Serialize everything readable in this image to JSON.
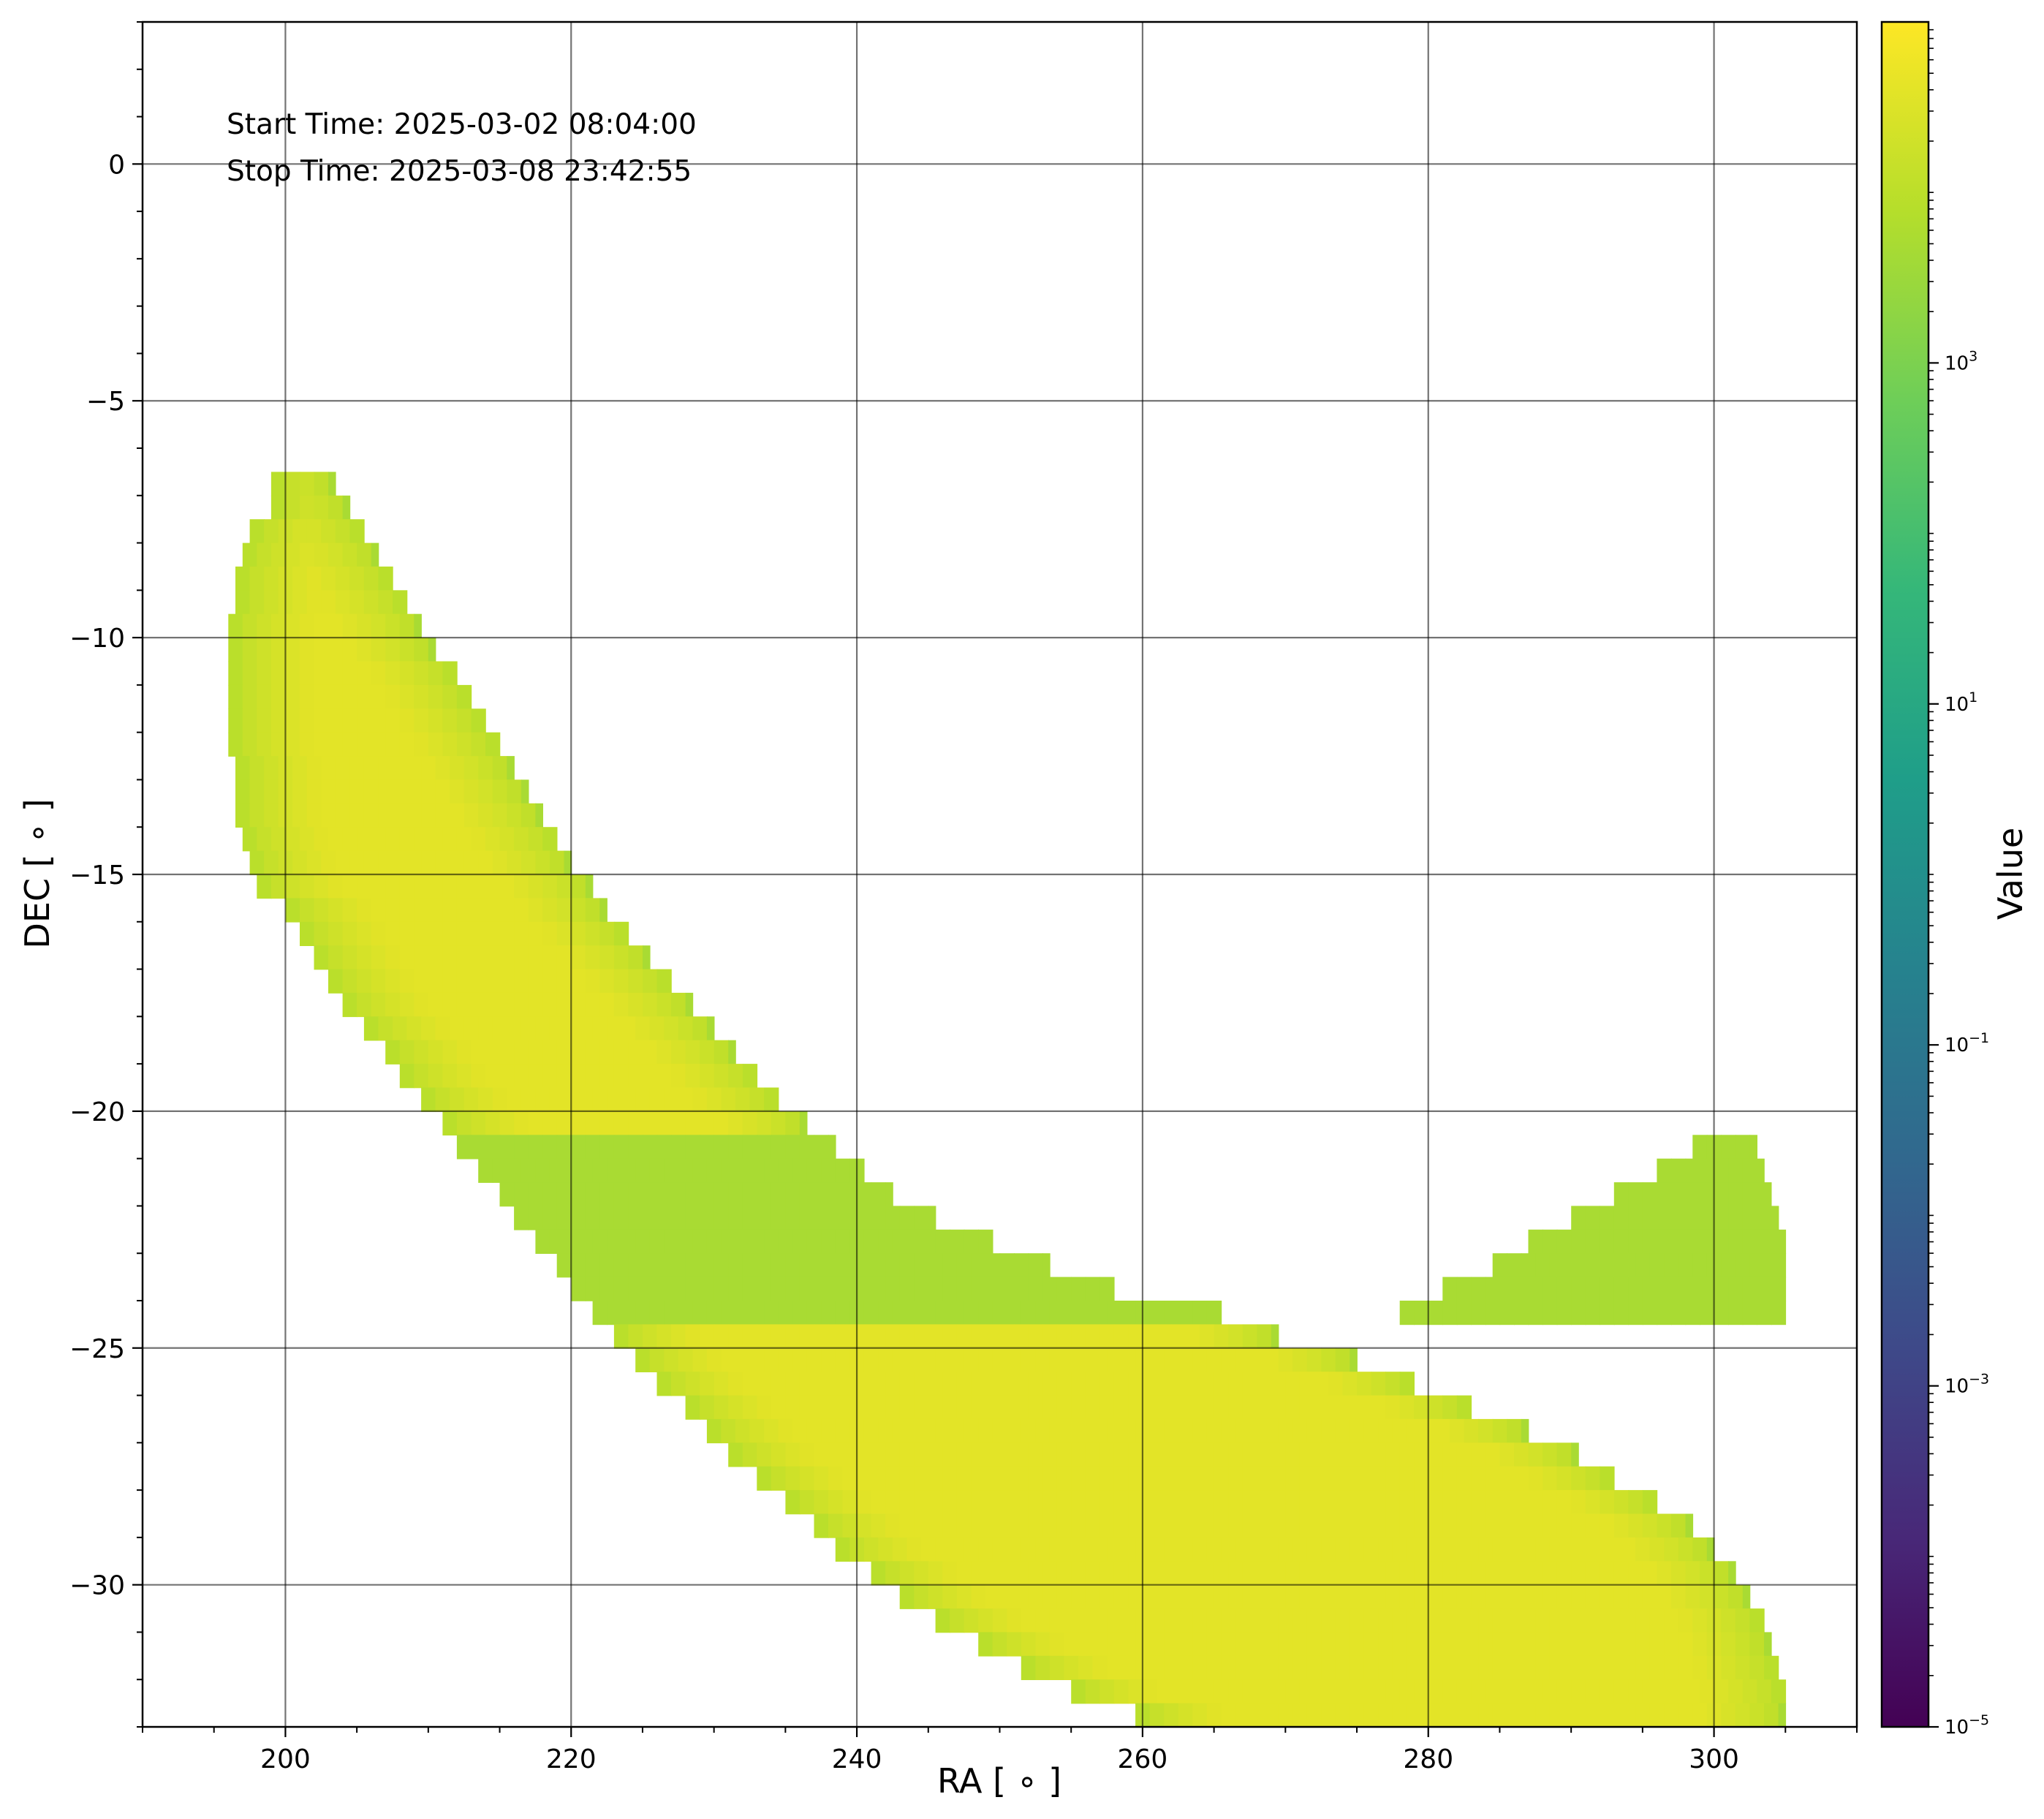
{
  "chart_data": {
    "type": "heatmap",
    "title": "",
    "xlabel": "RA [ ∘ ]",
    "ylabel": "DEC [ ∘ ]",
    "xlim": [
      190,
      310
    ],
    "ylim": [
      -33,
      3
    ],
    "x_ticks": [
      200,
      220,
      240,
      260,
      280,
      300
    ],
    "x_tick_labels": [
      "200",
      "220",
      "240",
      "260",
      "280",
      "300"
    ],
    "y_ticks": [
      0,
      -5,
      -10,
      -15,
      -20,
      -25,
      -30
    ],
    "y_tick_labels": [
      "0",
      "−5",
      "−10",
      "−15",
      "−20",
      "−25",
      "−30"
    ],
    "grid": true,
    "colormap": "viridis",
    "colorbar": {
      "label": "Value",
      "scale": "log",
      "range": [
        1e-05,
        100000
      ],
      "ticks": [
        1e-05,
        0.001,
        0.1,
        10,
        1000
      ],
      "tick_labels": [
        {
          "base": "10",
          "exp": "−5"
        },
        {
          "base": "10",
          "exp": "−3"
        },
        {
          "base": "10",
          "exp": "−1"
        },
        {
          "base": "10",
          "exp": "1"
        },
        {
          "base": "10",
          "exp": "3"
        }
      ]
    },
    "annotations": [
      "Start Time: 2025-03-02 08:04:00",
      "Stop Time: 2025-03-08 23:42:55"
    ],
    "region": {
      "description": "banana-shaped coverage region",
      "value_peak": 40000,
      "value_edge": 5000,
      "dec_top": -6.5,
      "dec_bottom": -33,
      "dec_step": 0.5,
      "left_edge": [
        [
          -6.5,
          199
        ],
        [
          -7,
          199
        ],
        [
          -7.5,
          197.5
        ],
        [
          -8,
          197
        ],
        [
          -8.5,
          196.5
        ],
        [
          -9,
          196.5
        ],
        [
          -9.5,
          196
        ],
        [
          -10,
          196
        ],
        [
          -10.5,
          196
        ],
        [
          -11,
          196
        ],
        [
          -11.5,
          196
        ],
        [
          -12,
          196
        ],
        [
          -12.5,
          196.5
        ],
        [
          -13,
          196.5
        ],
        [
          -13.5,
          196.5
        ],
        [
          -14,
          197
        ],
        [
          -14.5,
          197.5
        ],
        [
          -15,
          198
        ],
        [
          -15.5,
          200
        ],
        [
          -16,
          201
        ],
        [
          -16.5,
          202
        ],
        [
          -17,
          203
        ],
        [
          -17.5,
          204
        ],
        [
          -18,
          205.5
        ],
        [
          -18.5,
          207
        ],
        [
          -19,
          208
        ],
        [
          -19.5,
          209.5
        ],
        [
          -20,
          211
        ],
        [
          -20.5,
          212
        ],
        [
          -21,
          213.5
        ],
        [
          -21.5,
          215
        ],
        [
          -22,
          216
        ],
        [
          -22.5,
          217.5
        ],
        [
          -23,
          219
        ],
        [
          -23.5,
          220
        ],
        [
          -24,
          221.5
        ],
        [
          -24.5,
          223
        ],
        [
          -25,
          224.5
        ],
        [
          -25.5,
          226
        ],
        [
          -26,
          228
        ],
        [
          -26.5,
          229.5
        ],
        [
          -27,
          231
        ],
        [
          -27.5,
          233
        ],
        [
          -28,
          235
        ],
        [
          -28.5,
          237
        ],
        [
          -29,
          238.5
        ],
        [
          -29.5,
          241
        ],
        [
          -30,
          243
        ],
        [
          -30.5,
          245.5
        ],
        [
          -31,
          248.5
        ],
        [
          -31.5,
          251.5
        ],
        [
          -32,
          255
        ],
        [
          -32.5,
          259.5
        ],
        [
          -33,
          265
        ]
      ],
      "right_edge": [
        [
          -6.5,
          203.5
        ],
        [
          -7,
          204.5
        ],
        [
          -7.5,
          205.5
        ],
        [
          -8,
          206.5
        ],
        [
          -8.5,
          207.5
        ],
        [
          -9,
          208.5
        ],
        [
          -9.5,
          209.5
        ],
        [
          -10,
          210.5
        ],
        [
          -10.5,
          212
        ],
        [
          -11,
          213
        ],
        [
          -11.5,
          214
        ],
        [
          -12,
          215
        ],
        [
          -12.5,
          216
        ],
        [
          -13,
          217
        ],
        [
          -13.5,
          218
        ],
        [
          -14,
          219
        ],
        [
          -14.5,
          220
        ],
        [
          -15,
          221.5
        ],
        [
          -15.5,
          222.5
        ],
        [
          -16,
          224
        ],
        [
          -16.5,
          225.5
        ],
        [
          -17,
          227
        ],
        [
          -17.5,
          228.5
        ],
        [
          -18,
          230
        ],
        [
          -18.5,
          231.5
        ],
        [
          -19,
          233
        ],
        [
          -19.5,
          234.5
        ],
        [
          -20,
          236.5
        ],
        [
          -20.5,
          238.5
        ],
        [
          -21,
          240.5
        ],
        [
          -21.5,
          242.5
        ],
        [
          -22,
          245.5
        ],
        [
          -22.5,
          249.5
        ],
        [
          -23,
          253.5
        ],
        [
          -23.5,
          258
        ],
        [
          -24,
          265.5
        ],
        [
          -24.5,
          269.5
        ],
        [
          -25,
          275
        ],
        [
          -25.5,
          279
        ],
        [
          -26,
          283
        ],
        [
          -26.5,
          287
        ],
        [
          -27,
          290.5
        ],
        [
          -27.5,
          293
        ],
        [
          -28,
          296
        ],
        [
          -28.5,
          298.5
        ],
        [
          -29,
          300
        ],
        [
          -29.5,
          301.5
        ],
        [
          -30,
          302.5
        ],
        [
          -30.5,
          303.5
        ],
        [
          -31,
          304
        ],
        [
          -31.5,
          304.5
        ],
        [
          -32,
          305
        ],
        [
          -32.5,
          305
        ],
        [
          -33,
          305
        ]
      ],
      "right_arm": [
        [
          -20.5,
          298.5,
          303
        ],
        [
          -21,
          296,
          303.5
        ],
        [
          -21.5,
          293,
          304
        ],
        [
          -22,
          290,
          304.5
        ],
        [
          -22.5,
          287,
          305
        ],
        [
          -23,
          284.5,
          305
        ],
        [
          -23.5,
          281,
          305
        ],
        [
          -24,
          278,
          305
        ]
      ]
    }
  }
}
